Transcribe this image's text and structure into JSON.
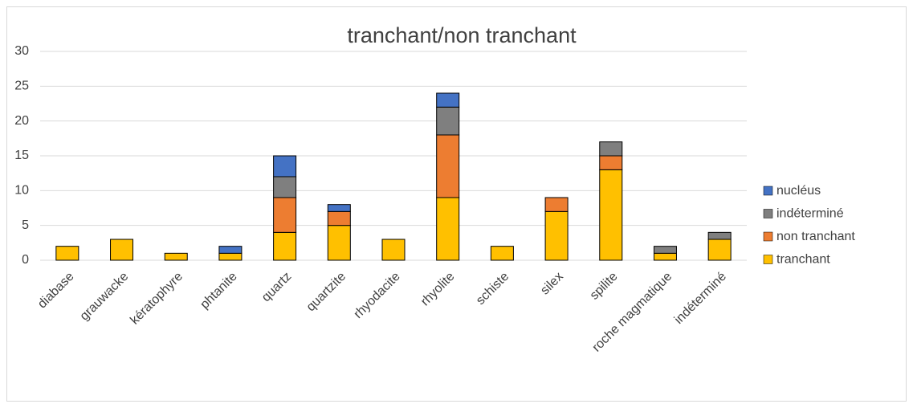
{
  "chart_data": {
    "type": "stacked_bar",
    "title": "tranchant/non tranchant",
    "categories": [
      "diabase",
      "grauwacke",
      "kératophyre",
      "phtanite",
      "quartz",
      "quartzite",
      "rhyodacite",
      "rhyolite",
      "schiste",
      "silex",
      "spilite",
      "roche magmatique",
      "indéterminé"
    ],
    "series": [
      {
        "name": "tranchant",
        "color": "#FFC000",
        "values": [
          2,
          3,
          1,
          1,
          4,
          5,
          3,
          9,
          2,
          7,
          13,
          1,
          3
        ]
      },
      {
        "name": "non tranchant",
        "color": "#ED7D31",
        "values": [
          0,
          0,
          0,
          0,
          5,
          2,
          0,
          9,
          0,
          2,
          2,
          0,
          0
        ]
      },
      {
        "name": "indéterminé",
        "color": "#7F7F7F",
        "values": [
          0,
          0,
          0,
          0,
          3,
          0,
          0,
          4,
          0,
          0,
          2,
          1,
          1
        ]
      },
      {
        "name": "nucléus",
        "color": "#4472C4",
        "values": [
          0,
          0,
          0,
          1,
          3,
          1,
          0,
          2,
          0,
          0,
          0,
          0,
          0
        ]
      }
    ],
    "ylim": [
      0,
      30
    ],
    "yticks": [
      0,
      5,
      10,
      15,
      20,
      25,
      30
    ],
    "grid": true,
    "legend": "right"
  }
}
